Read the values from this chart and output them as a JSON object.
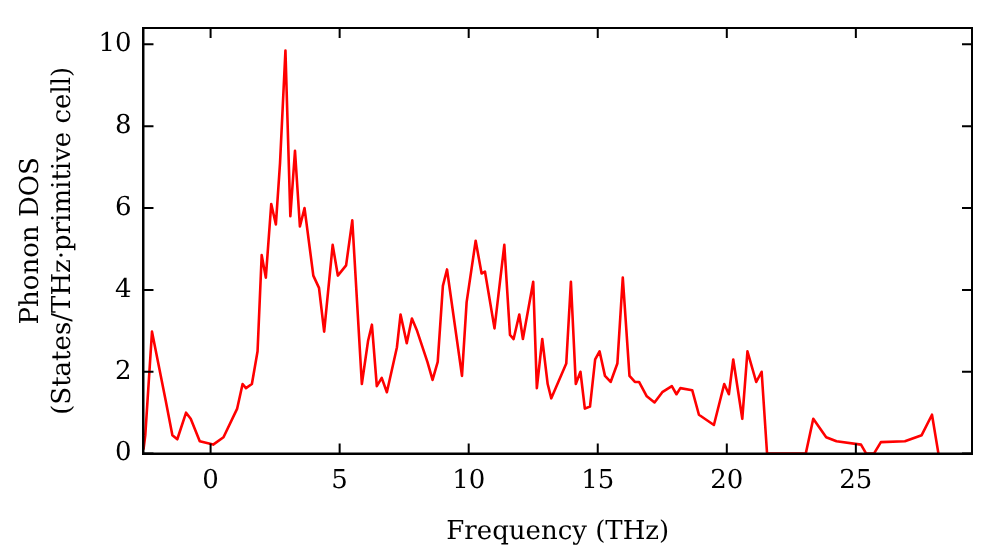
{
  "chart_data": {
    "type": "line",
    "xlabel": "Frequency (THz)",
    "ylabel": "Phonon DOS\n(States/THz·primitive cell)",
    "xlim": [
      -2.6,
      29.5
    ],
    "ylim": [
      0,
      10.4
    ],
    "xticks": [
      0,
      5,
      10,
      15,
      20,
      25
    ],
    "yticks": [
      0,
      2,
      4,
      6,
      8,
      10
    ],
    "grid": false,
    "legend": false,
    "marker": "none",
    "line_style": "solid",
    "series": [
      {
        "color": "#ff0000",
        "x": [
          -2.6,
          -2.53,
          -2.27,
          -1.74,
          -1.48,
          -1.29,
          -0.95,
          -0.77,
          -0.42,
          0.1,
          0.5,
          1.03,
          1.24,
          1.37,
          1.6,
          1.82,
          1.98,
          2.14,
          2.35,
          2.53,
          2.69,
          2.9,
          3.09,
          3.27,
          3.46,
          3.64,
          3.98,
          4.2,
          4.4,
          4.73,
          4.93,
          5.25,
          5.49,
          5.86,
          6.1,
          6.25,
          6.44,
          6.63,
          6.83,
          7.22,
          7.36,
          7.6,
          7.8,
          8.0,
          8.4,
          8.6,
          8.8,
          9.0,
          9.16,
          9.74,
          9.92,
          10.27,
          10.5,
          10.63,
          11.0,
          11.38,
          11.6,
          11.74,
          11.96,
          12.1,
          12.5,
          12.64,
          12.85,
          13.06,
          13.2,
          13.78,
          13.96,
          14.15,
          14.33,
          14.5,
          14.7,
          14.9,
          15.07,
          15.28,
          15.5,
          15.76,
          15.97,
          16.23,
          16.44,
          16.6,
          16.9,
          17.2,
          17.5,
          17.87,
          18.05,
          18.2,
          18.66,
          18.92,
          19.5,
          19.9,
          20.08,
          20.25,
          20.6,
          20.8,
          21.14,
          21.35,
          21.56,
          23.06,
          23.35,
          23.85,
          24.25,
          25.2,
          25.4,
          25.7,
          25.97,
          26.9,
          27.55,
          27.95,
          28.2
        ],
        "values": [
          0.1,
          0.45,
          2.98,
          1.3,
          0.45,
          0.35,
          1.0,
          0.85,
          0.3,
          0.22,
          0.4,
          1.1,
          1.7,
          1.6,
          1.7,
          2.5,
          4.85,
          4.3,
          6.1,
          5.6,
          7.1,
          9.85,
          5.8,
          7.4,
          5.55,
          6.0,
          4.35,
          4.05,
          2.98,
          5.1,
          4.35,
          4.6,
          5.7,
          1.7,
          2.75,
          3.15,
          1.65,
          1.85,
          1.5,
          2.6,
          3.4,
          2.7,
          3.3,
          3.0,
          2.24,
          1.8,
          2.24,
          4.1,
          4.5,
          1.9,
          3.7,
          5.2,
          4.4,
          4.45,
          3.06,
          5.1,
          2.9,
          2.8,
          3.4,
          2.8,
          4.2,
          1.6,
          2.8,
          1.7,
          1.35,
          2.2,
          4.2,
          1.7,
          2.0,
          1.1,
          1.15,
          2.3,
          2.5,
          1.9,
          1.75,
          2.2,
          4.3,
          1.9,
          1.75,
          1.75,
          1.4,
          1.25,
          1.5,
          1.65,
          1.45,
          1.6,
          1.55,
          0.95,
          0.7,
          1.7,
          1.45,
          2.3,
          0.85,
          2.5,
          1.75,
          2.0,
          0,
          0,
          0.85,
          0.4,
          0.3,
          0.22,
          0,
          0,
          0.28,
          0.3,
          0.45,
          0.95,
          0
        ]
      }
    ]
  }
}
